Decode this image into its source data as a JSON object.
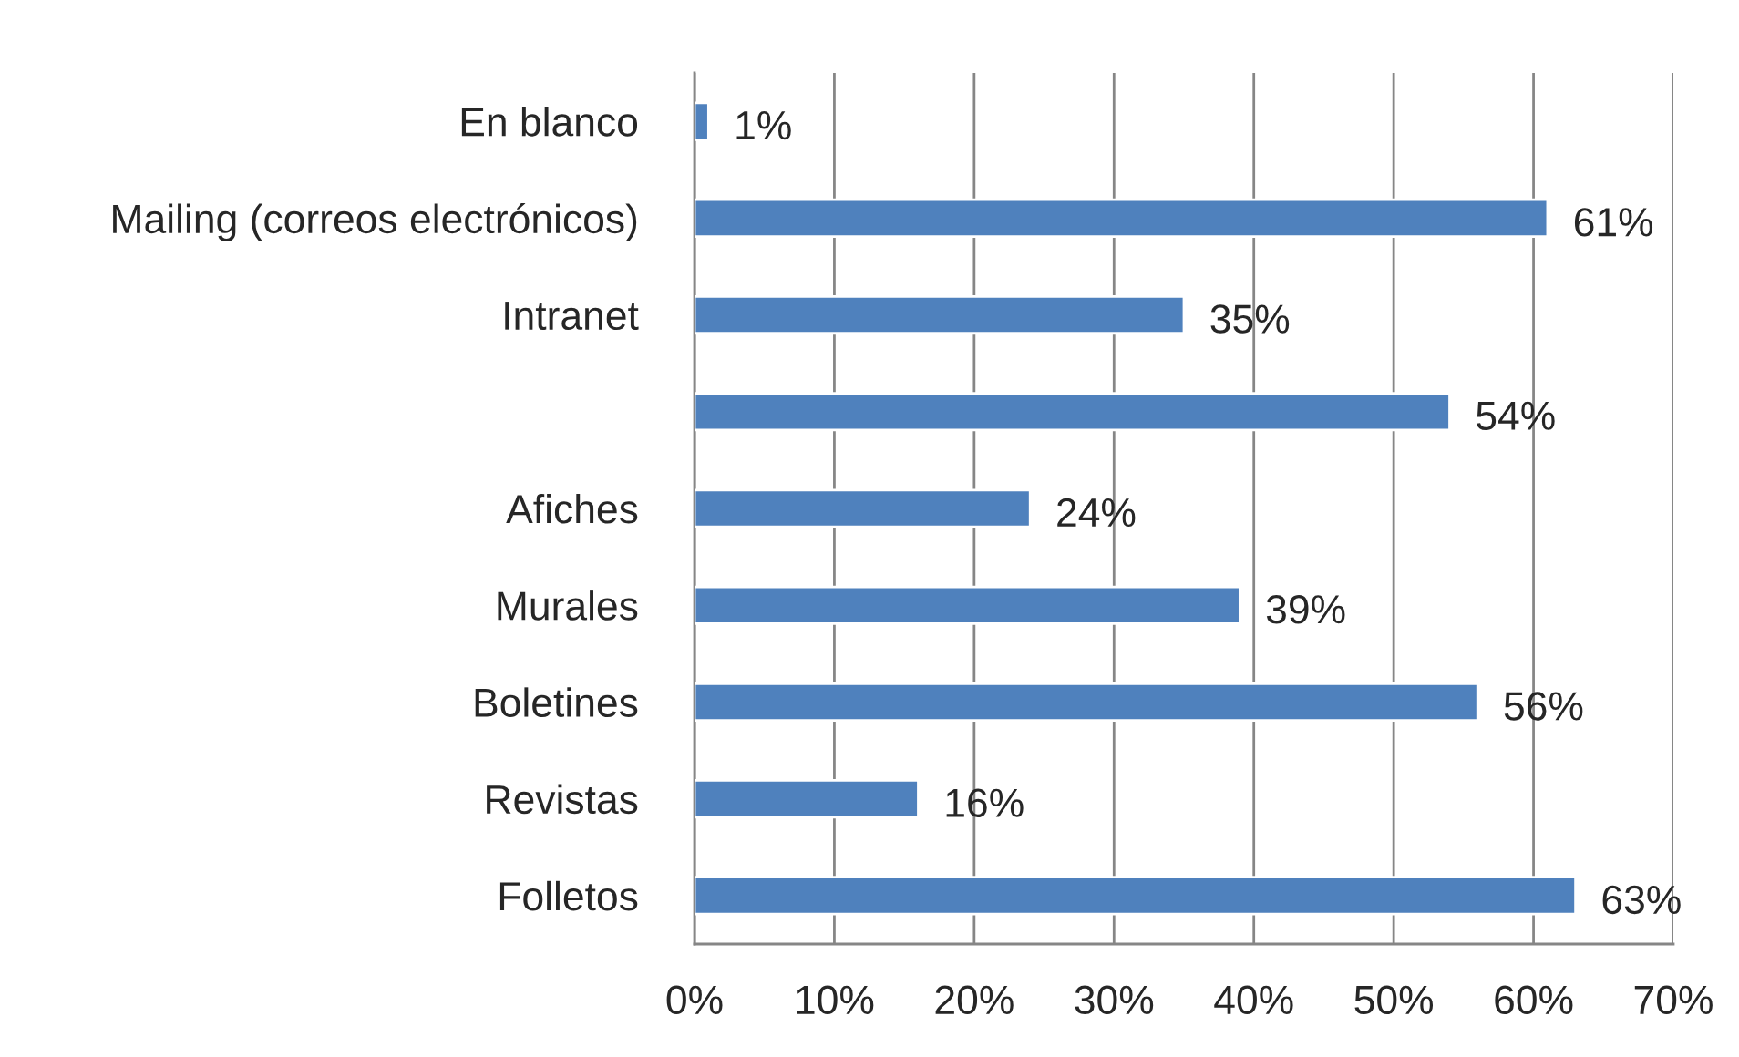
{
  "chart_data": {
    "type": "bar",
    "orientation": "horizontal",
    "categories": [
      "En blanco",
      "Mailing (correos electrónicos)",
      "Intranet",
      null,
      "Afiches",
      "Murales",
      "Boletines",
      "Revistas",
      "Folletos"
    ],
    "values": [
      1,
      61,
      35,
      54,
      24,
      39,
      56,
      16,
      63
    ],
    "value_labels": [
      "1%",
      "61%",
      "35%",
      "54%",
      "24%",
      "39%",
      "56%",
      "16%",
      "63%"
    ],
    "color": "#4f81bd",
    "xlim": [
      0,
      70
    ],
    "xticks": [
      {
        "value": 0,
        "label": "0%"
      },
      {
        "value": 10,
        "label": "10%"
      },
      {
        "value": 20,
        "label": "20%"
      },
      {
        "value": 30,
        "label": "30%"
      },
      {
        "value": 40,
        "label": "40%"
      },
      {
        "value": 50,
        "label": "50%"
      },
      {
        "value": 60,
        "label": "60%"
      },
      {
        "value": 70,
        "label": "70%"
      }
    ],
    "grid": "x"
  }
}
